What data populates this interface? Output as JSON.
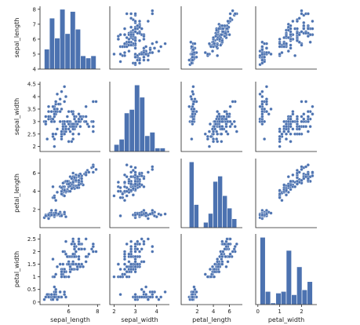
{
  "chart_data": {
    "type": "scatter",
    "variables": [
      "sepal_length",
      "sepal_width",
      "petal_length",
      "petal_width"
    ],
    "limits": {
      "sepal_length": [
        4.0,
        8.2
      ],
      "sepal_width": [
        1.8,
        4.6
      ],
      "petal_length": [
        0.0,
        7.6
      ],
      "petal_width": [
        -0.1,
        2.7
      ]
    },
    "ticks": {
      "sepal_length": [
        4,
        5,
        6,
        7,
        8
      ],
      "sepal_width": [
        2.0,
        2.5,
        3.0,
        3.5,
        4.0,
        4.5
      ],
      "petal_length": [
        2,
        4,
        6
      ],
      "petal_width": [
        0.0,
        0.5,
        1.0,
        1.5,
        2.0,
        2.5
      ]
    },
    "x_ticks": {
      "sepal_length": [
        6,
        8
      ],
      "sepal_width": [
        2,
        3,
        4
      ],
      "petal_length": [
        2,
        4,
        6
      ],
      "petal_width": [
        0,
        1,
        2
      ]
    },
    "hist_bins": {
      "sepal_length": {
        "edges": [
          4.3,
          4.66,
          5.02,
          5.38,
          5.74,
          6.1,
          6.46,
          6.82,
          7.18,
          7.54,
          7.9
        ],
        "counts": [
          9,
          23,
          14,
          27,
          16,
          26,
          18,
          6,
          5,
          6
        ]
      },
      "sepal_width": {
        "edges": [
          2.0,
          2.24,
          2.48,
          2.72,
          2.96,
          3.2,
          3.44,
          3.68,
          3.92,
          4.16,
          4.4
        ],
        "counts": [
          4,
          7,
          22,
          24,
          38,
          31,
          9,
          11,
          2,
          2
        ]
      },
      "petal_length": {
        "edges": [
          1.0,
          1.59,
          2.18,
          2.77,
          3.36,
          3.95,
          4.54,
          5.13,
          5.72,
          6.31,
          6.9
        ],
        "counts": [
          37,
          13,
          0,
          3,
          8,
          26,
          29,
          18,
          11,
          5
        ]
      },
      "petal_width": {
        "edges": [
          0.1,
          0.34,
          0.58,
          0.82,
          1.06,
          1.3,
          1.54,
          1.78,
          2.02,
          2.26,
          2.5
        ],
        "counts": [
          41,
          8,
          1,
          7,
          8,
          33,
          6,
          23,
          9,
          14
        ]
      }
    },
    "data": [
      [
        5.1,
        3.5,
        1.4,
        0.2
      ],
      [
        4.9,
        3.0,
        1.4,
        0.2
      ],
      [
        4.7,
        3.2,
        1.3,
        0.2
      ],
      [
        4.6,
        3.1,
        1.5,
        0.2
      ],
      [
        5.0,
        3.6,
        1.4,
        0.2
      ],
      [
        5.4,
        3.9,
        1.7,
        0.4
      ],
      [
        4.6,
        3.4,
        1.4,
        0.3
      ],
      [
        5.0,
        3.4,
        1.5,
        0.2
      ],
      [
        4.4,
        2.9,
        1.4,
        0.2
      ],
      [
        4.9,
        3.1,
        1.5,
        0.1
      ],
      [
        5.4,
        3.7,
        1.5,
        0.2
      ],
      [
        4.8,
        3.4,
        1.6,
        0.2
      ],
      [
        4.8,
        3.0,
        1.4,
        0.1
      ],
      [
        4.3,
        3.0,
        1.1,
        0.1
      ],
      [
        5.8,
        4.0,
        1.2,
        0.2
      ],
      [
        5.7,
        4.4,
        1.5,
        0.4
      ],
      [
        5.4,
        3.9,
        1.3,
        0.4
      ],
      [
        5.1,
        3.5,
        1.4,
        0.3
      ],
      [
        5.7,
        3.8,
        1.7,
        0.3
      ],
      [
        5.1,
        3.8,
        1.5,
        0.3
      ],
      [
        5.4,
        3.4,
        1.7,
        0.2
      ],
      [
        5.1,
        3.7,
        1.5,
        0.4
      ],
      [
        4.6,
        3.6,
        1.0,
        0.2
      ],
      [
        5.1,
        3.3,
        1.7,
        0.5
      ],
      [
        4.8,
        3.4,
        1.9,
        0.2
      ],
      [
        5.0,
        3.0,
        1.6,
        0.2
      ],
      [
        5.0,
        3.4,
        1.6,
        0.4
      ],
      [
        5.2,
        3.5,
        1.5,
        0.2
      ],
      [
        5.2,
        3.4,
        1.4,
        0.2
      ],
      [
        4.7,
        3.2,
        1.6,
        0.2
      ],
      [
        4.8,
        3.1,
        1.6,
        0.2
      ],
      [
        5.4,
        3.4,
        1.5,
        0.4
      ],
      [
        5.2,
        4.1,
        1.5,
        0.1
      ],
      [
        5.5,
        4.2,
        1.4,
        0.2
      ],
      [
        4.9,
        3.1,
        1.5,
        0.2
      ],
      [
        5.0,
        3.2,
        1.2,
        0.2
      ],
      [
        5.5,
        3.5,
        1.3,
        0.2
      ],
      [
        4.9,
        3.6,
        1.4,
        0.1
      ],
      [
        4.4,
        3.0,
        1.3,
        0.2
      ],
      [
        5.1,
        3.4,
        1.5,
        0.2
      ],
      [
        5.0,
        3.5,
        1.3,
        0.3
      ],
      [
        4.5,
        2.3,
        1.3,
        0.3
      ],
      [
        4.4,
        3.2,
        1.3,
        0.2
      ],
      [
        5.0,
        3.5,
        1.6,
        0.6
      ],
      [
        5.1,
        3.8,
        1.9,
        0.4
      ],
      [
        4.8,
        3.0,
        1.4,
        0.3
      ],
      [
        5.1,
        3.8,
        1.6,
        0.2
      ],
      [
        4.6,
        3.2,
        1.4,
        0.2
      ],
      [
        5.3,
        3.7,
        1.5,
        0.2
      ],
      [
        5.0,
        3.3,
        1.4,
        0.2
      ],
      [
        7.0,
        3.2,
        4.7,
        1.4
      ],
      [
        6.4,
        3.2,
        4.5,
        1.5
      ],
      [
        6.9,
        3.1,
        4.9,
        1.5
      ],
      [
        5.5,
        2.3,
        4.0,
        1.3
      ],
      [
        6.5,
        2.8,
        4.6,
        1.5
      ],
      [
        5.7,
        2.8,
        4.5,
        1.3
      ],
      [
        6.3,
        3.3,
        4.7,
        1.6
      ],
      [
        4.9,
        2.4,
        3.3,
        1.0
      ],
      [
        6.6,
        2.9,
        4.6,
        1.3
      ],
      [
        5.2,
        2.7,
        3.9,
        1.4
      ],
      [
        5.0,
        2.0,
        3.5,
        1.0
      ],
      [
        5.9,
        3.0,
        4.2,
        1.5
      ],
      [
        6.0,
        2.2,
        4.0,
        1.0
      ],
      [
        6.1,
        2.9,
        4.7,
        1.4
      ],
      [
        5.6,
        2.9,
        3.6,
        1.3
      ],
      [
        6.7,
        3.1,
        4.4,
        1.4
      ],
      [
        5.6,
        3.0,
        4.5,
        1.5
      ],
      [
        5.8,
        2.7,
        4.1,
        1.0
      ],
      [
        6.2,
        2.2,
        4.5,
        1.5
      ],
      [
        5.6,
        2.5,
        3.9,
        1.1
      ],
      [
        5.9,
        3.2,
        4.8,
        1.8
      ],
      [
        6.1,
        2.8,
        4.0,
        1.3
      ],
      [
        6.3,
        2.5,
        4.9,
        1.5
      ],
      [
        6.1,
        2.8,
        4.7,
        1.2
      ],
      [
        6.4,
        2.9,
        4.3,
        1.3
      ],
      [
        6.6,
        3.0,
        4.4,
        1.4
      ],
      [
        6.8,
        2.8,
        4.8,
        1.4
      ],
      [
        6.7,
        3.0,
        5.0,
        1.7
      ],
      [
        6.0,
        2.9,
        4.5,
        1.5
      ],
      [
        5.7,
        2.6,
        3.5,
        1.0
      ],
      [
        5.5,
        2.4,
        3.8,
        1.1
      ],
      [
        5.5,
        2.4,
        3.7,
        1.0
      ],
      [
        5.8,
        2.7,
        3.9,
        1.2
      ],
      [
        6.0,
        2.7,
        5.1,
        1.6
      ],
      [
        5.4,
        3.0,
        4.5,
        1.5
      ],
      [
        6.0,
        3.4,
        4.5,
        1.6
      ],
      [
        6.7,
        3.1,
        4.7,
        1.5
      ],
      [
        6.3,
        2.3,
        4.4,
        1.3
      ],
      [
        5.6,
        3.0,
        4.1,
        1.3
      ],
      [
        5.5,
        2.5,
        4.0,
        1.3
      ],
      [
        5.5,
        2.6,
        4.4,
        1.2
      ],
      [
        6.1,
        3.0,
        4.6,
        1.4
      ],
      [
        5.8,
        2.6,
        4.0,
        1.2
      ],
      [
        5.0,
        2.3,
        3.3,
        1.0
      ],
      [
        5.6,
        2.7,
        4.2,
        1.3
      ],
      [
        5.7,
        3.0,
        4.2,
        1.2
      ],
      [
        5.7,
        2.9,
        4.2,
        1.3
      ],
      [
        6.2,
        2.9,
        4.3,
        1.3
      ],
      [
        5.1,
        2.5,
        3.0,
        1.1
      ],
      [
        5.7,
        2.8,
        4.1,
        1.3
      ],
      [
        6.3,
        3.3,
        6.0,
        2.5
      ],
      [
        5.8,
        2.7,
        5.1,
        1.9
      ],
      [
        7.1,
        3.0,
        5.9,
        2.1
      ],
      [
        6.3,
        2.9,
        5.6,
        1.8
      ],
      [
        6.5,
        3.0,
        5.8,
        2.2
      ],
      [
        7.6,
        3.0,
        6.6,
        2.1
      ],
      [
        4.9,
        2.5,
        4.5,
        1.7
      ],
      [
        7.3,
        2.9,
        6.3,
        1.8
      ],
      [
        6.7,
        2.5,
        5.8,
        1.8
      ],
      [
        7.2,
        3.6,
        6.1,
        2.5
      ],
      [
        6.5,
        3.2,
        5.1,
        2.0
      ],
      [
        6.4,
        2.7,
        5.3,
        1.9
      ],
      [
        6.8,
        3.0,
        5.5,
        2.1
      ],
      [
        5.7,
        2.5,
        5.0,
        2.0
      ],
      [
        5.8,
        2.8,
        5.1,
        2.4
      ],
      [
        6.4,
        3.2,
        5.3,
        2.3
      ],
      [
        6.5,
        3.0,
        5.5,
        1.8
      ],
      [
        7.7,
        3.8,
        6.7,
        2.2
      ],
      [
        7.7,
        2.6,
        6.9,
        2.3
      ],
      [
        6.0,
        2.2,
        5.0,
        1.5
      ],
      [
        6.9,
        3.2,
        5.7,
        2.3
      ],
      [
        5.6,
        2.8,
        4.9,
        2.0
      ],
      [
        7.7,
        2.8,
        6.7,
        2.0
      ],
      [
        6.3,
        2.7,
        4.9,
        1.8
      ],
      [
        6.7,
        3.3,
        5.7,
        2.1
      ],
      [
        7.2,
        3.2,
        6.0,
        1.8
      ],
      [
        6.2,
        2.8,
        4.8,
        1.8
      ],
      [
        6.1,
        3.0,
        4.9,
        1.8
      ],
      [
        6.4,
        2.8,
        5.6,
        2.1
      ],
      [
        7.2,
        3.0,
        5.8,
        1.6
      ],
      [
        7.4,
        2.8,
        6.1,
        1.9
      ],
      [
        7.9,
        3.8,
        6.4,
        2.0
      ],
      [
        6.4,
        2.8,
        5.6,
        2.2
      ],
      [
        6.3,
        2.8,
        5.1,
        1.5
      ],
      [
        6.1,
        2.6,
        5.6,
        1.4
      ],
      [
        7.7,
        3.0,
        6.1,
        2.3
      ],
      [
        6.3,
        3.4,
        5.6,
        2.4
      ],
      [
        6.4,
        3.1,
        5.5,
        1.8
      ],
      [
        6.0,
        3.0,
        4.8,
        1.8
      ],
      [
        6.9,
        3.1,
        5.4,
        2.1
      ],
      [
        6.7,
        3.1,
        5.6,
        2.4
      ],
      [
        6.9,
        3.1,
        5.1,
        2.3
      ],
      [
        5.8,
        2.7,
        5.1,
        1.9
      ],
      [
        6.8,
        3.2,
        5.9,
        2.3
      ],
      [
        6.7,
        3.3,
        5.7,
        2.5
      ],
      [
        6.7,
        3.0,
        5.2,
        2.3
      ],
      [
        6.3,
        2.5,
        5.0,
        1.9
      ],
      [
        6.5,
        3.0,
        5.2,
        2.0
      ],
      [
        6.2,
        3.4,
        5.4,
        2.3
      ],
      [
        5.9,
        3.0,
        5.1,
        1.8
      ]
    ]
  }
}
